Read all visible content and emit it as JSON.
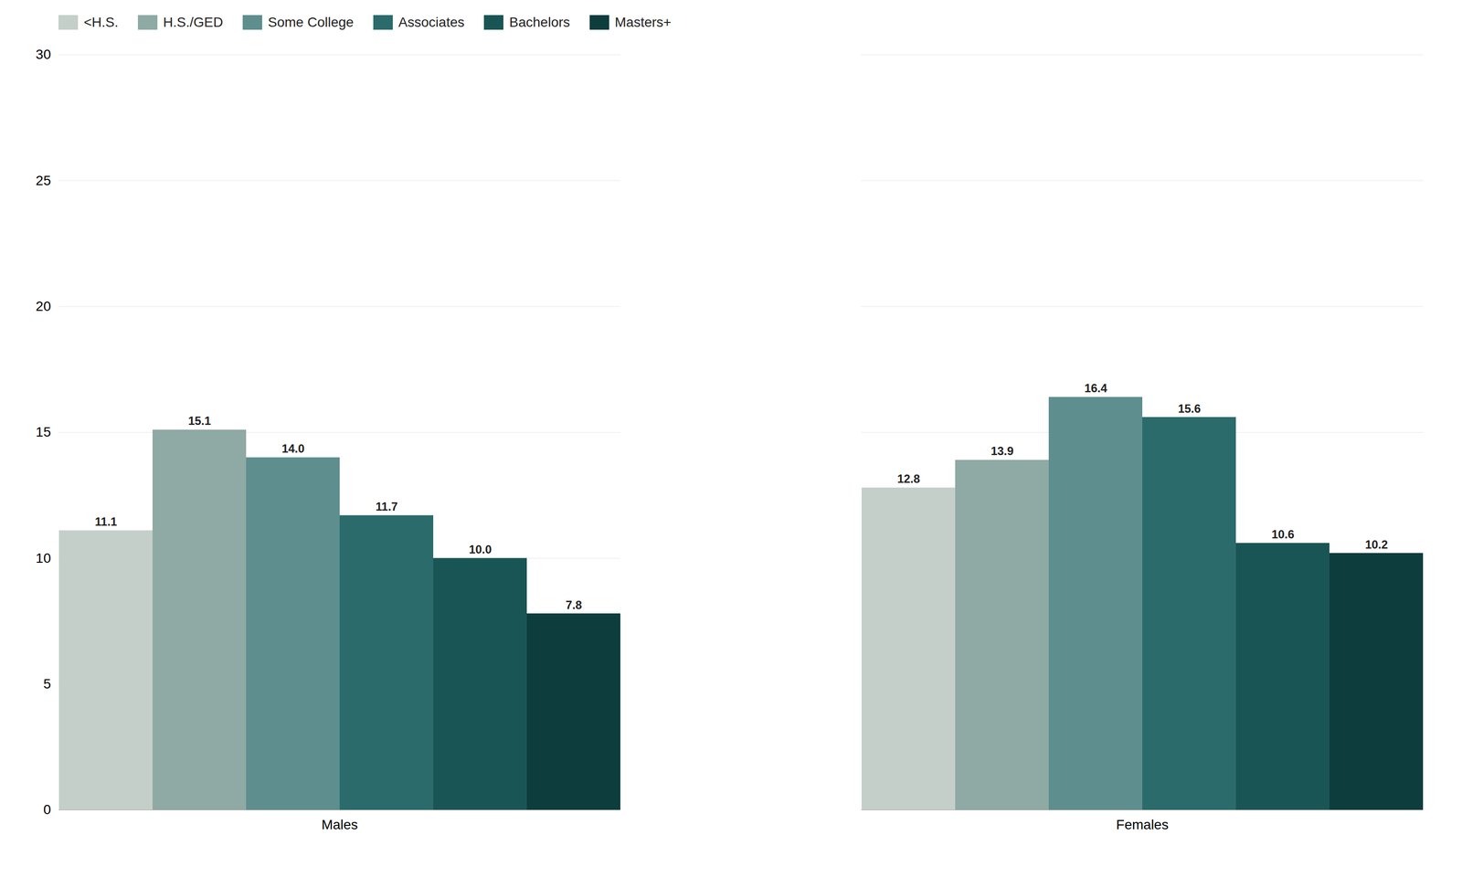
{
  "chart_data": {
    "type": "bar",
    "categories": [
      "Males",
      "Females"
    ],
    "series": [
      {
        "name": "<H.S.",
        "color": "#c5cfc9",
        "values": [
          11.1,
          12.8
        ],
        "value_labels": [
          "11.1",
          "12.8"
        ]
      },
      {
        "name": "H.S./GED",
        "color": "#8fa9a4",
        "values": [
          15.1,
          13.9
        ],
        "value_labels": [
          "15.1",
          "13.9"
        ]
      },
      {
        "name": "Some College",
        "color": "#5e8e8e",
        "values": [
          14.0,
          16.4
        ],
        "value_labels": [
          "14.0",
          "16.4"
        ]
      },
      {
        "name": "Associates",
        "color": "#2b6b6b",
        "values": [
          11.7,
          15.6
        ],
        "value_labels": [
          "11.7",
          "15.6"
        ]
      },
      {
        "name": "Bachelors",
        "color": "#1a5555",
        "values": [
          10.0,
          10.6
        ],
        "value_labels": [
          "10.0",
          "10.6"
        ]
      },
      {
        "name": "Masters+",
        "color": "#0e3d3d",
        "values": [
          7.8,
          10.2
        ],
        "value_labels": [
          "7.8",
          "10.2"
        ]
      }
    ],
    "ylim": [
      0,
      30
    ],
    "yticks": [
      0,
      5,
      10,
      15,
      20,
      25,
      30
    ],
    "grid": true,
    "legend": "upper left",
    "data_labels": true
  }
}
